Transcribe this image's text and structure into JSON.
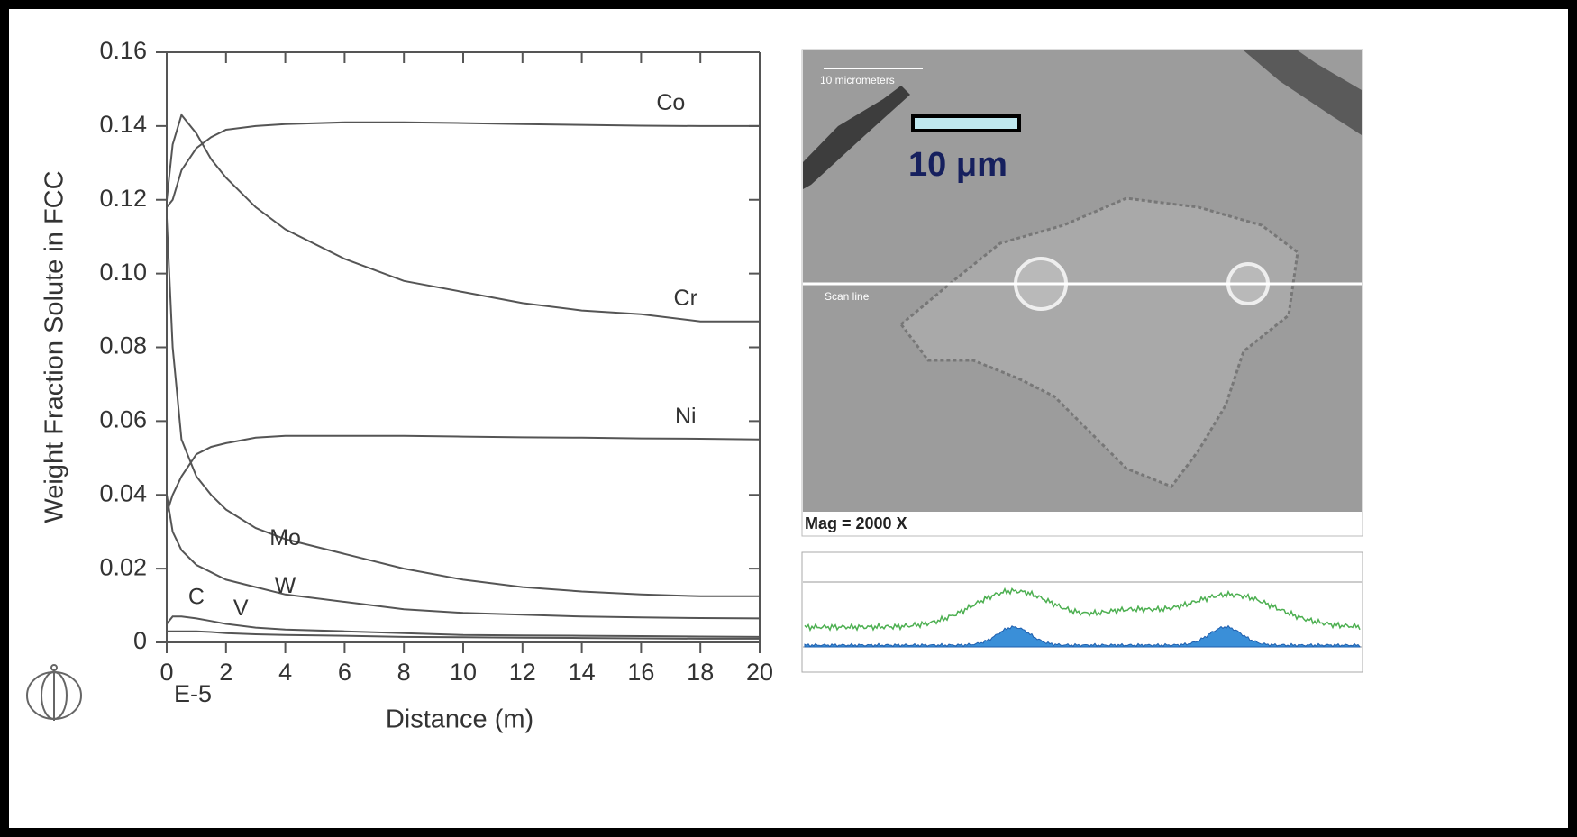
{
  "chart_data": {
    "type": "line",
    "x_label": "Distance (m)",
    "y_label": "Weight Fraction Solute in FCC",
    "x_multiplier": "E-5",
    "x": [
      0,
      0.2,
      0.5,
      1,
      1.5,
      2,
      3,
      4,
      6,
      8,
      10,
      12,
      14,
      16,
      18,
      20
    ],
    "series": [
      {
        "name": "Co",
        "color": "#555555",
        "values": [
          0.118,
          0.12,
          0.128,
          0.134,
          0.137,
          0.139,
          0.14,
          0.1405,
          0.141,
          0.141,
          0.1408,
          0.1405,
          0.1403,
          0.1401,
          0.14,
          0.14
        ]
      },
      {
        "name": "Cr",
        "color": "#555555",
        "values": [
          0.12,
          0.135,
          0.143,
          0.138,
          0.131,
          0.126,
          0.118,
          0.112,
          0.104,
          0.098,
          0.095,
          0.092,
          0.09,
          0.089,
          0.087,
          0.087
        ]
      },
      {
        "name": "Ni",
        "color": "#555555",
        "values": [
          0.035,
          0.04,
          0.045,
          0.051,
          0.053,
          0.054,
          0.0555,
          0.056,
          0.056,
          0.056,
          0.0558,
          0.0556,
          0.0555,
          0.0553,
          0.0552,
          0.055
        ]
      },
      {
        "name": "Mo",
        "color": "#555555",
        "values": [
          0.115,
          0.08,
          0.055,
          0.045,
          0.04,
          0.036,
          0.031,
          0.028,
          0.024,
          0.02,
          0.017,
          0.015,
          0.0138,
          0.013,
          0.0125,
          0.0125
        ]
      },
      {
        "name": "W",
        "color": "#555555",
        "values": [
          0.04,
          0.03,
          0.025,
          0.021,
          0.019,
          0.017,
          0.015,
          0.013,
          0.011,
          0.009,
          0.008,
          0.0075,
          0.007,
          0.0068,
          0.0066,
          0.0065
        ]
      },
      {
        "name": "C",
        "color": "#555555",
        "values": [
          0.005,
          0.007,
          0.007,
          0.0065,
          0.0058,
          0.005,
          0.004,
          0.0035,
          0.003,
          0.0025,
          0.002,
          0.0019,
          0.0018,
          0.0017,
          0.0016,
          0.0015
        ]
      },
      {
        "name": "V",
        "color": "#555555",
        "values": [
          0.003,
          0.003,
          0.003,
          0.003,
          0.0028,
          0.0025,
          0.0022,
          0.002,
          0.0018,
          0.0015,
          0.0014,
          0.0013,
          0.0012,
          0.0011,
          0.001,
          0.001
        ]
      }
    ],
    "xlim": [
      0,
      20
    ],
    "ylim": [
      0,
      0.16
    ],
    "xticks": [
      0,
      2,
      4,
      6,
      8,
      10,
      12,
      14,
      16,
      18,
      20
    ],
    "yticks": [
      0,
      0.02,
      0.04,
      0.06,
      0.08,
      {
        "value": 0.1,
        "label": "0.10"
      },
      0.12,
      0.14,
      0.16
    ]
  },
  "sem_image": {
    "scale_bar_label": "10 micrometers",
    "scale_label": "10 μm",
    "scan_line_label": "Scan line",
    "magnification": "Mag = 2000 X"
  }
}
